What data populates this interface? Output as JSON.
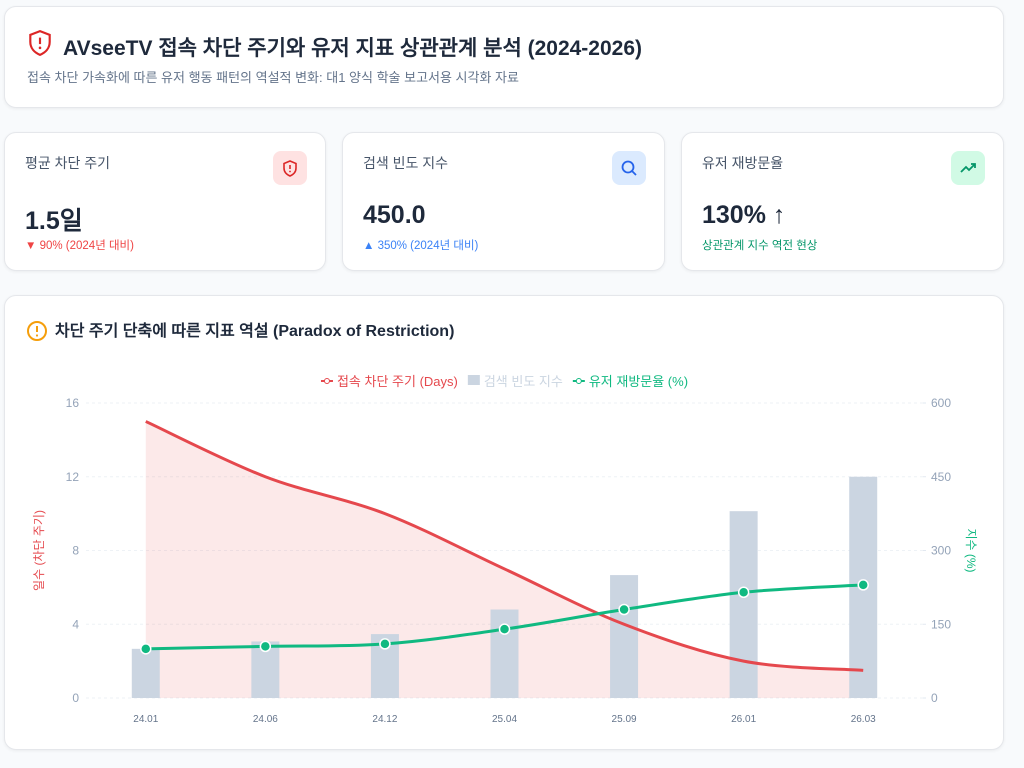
{
  "header": {
    "title": "AVseeTV 접속 차단 주기와 유저 지표 상관관계 분석 (2024-2026)",
    "subtitle": "접속 차단 가속화에 따른 유저 행동 패턴의 역설적 변화: 대1 양식 학술 보고서용 시각화 자료"
  },
  "kpis": [
    {
      "label": "평균 차단 주기",
      "value": "1.5일",
      "note": "90% (2024년 대비)"
    },
    {
      "label": "검색 빈도 지수",
      "value": "450.0",
      "note": "350% (2024년 대비)"
    },
    {
      "label": "유저 재방문율",
      "value": "130% ↑",
      "note": "상관관계 지수 역전 현상"
    }
  ],
  "chart_data": {
    "type": "combo",
    "title": "차단 주기 단축에 따른 지표 역설 (Paradox of Restriction)",
    "categories": [
      "24.01",
      "24.06",
      "24.12",
      "25.04",
      "25.09",
      "26.01",
      "26.03"
    ],
    "series": [
      {
        "name": "접속 차단 주기 (Days)",
        "type": "line",
        "axis": "y",
        "color": "#e5484d",
        "fill": true,
        "markers": false,
        "values": [
          15,
          12,
          10,
          7,
          4,
          2,
          1.5
        ]
      },
      {
        "name": "검색 빈도 지수",
        "type": "bar",
        "axis": "y2",
        "color": "#cbd5e1",
        "values": [
          100,
          115,
          130,
          180,
          250,
          380,
          450
        ]
      },
      {
        "name": "유저 재방문율 (%)",
        "type": "line",
        "axis": "y2",
        "color": "#10b981",
        "fill": false,
        "markers": true,
        "values": [
          100,
          105,
          110,
          140,
          180,
          215,
          230
        ]
      }
    ],
    "ylabel": "일수 (차단 주기)",
    "y2label": "지수 (%)",
    "ylim": [
      0,
      16
    ],
    "yticks": [
      0,
      4,
      8,
      12,
      16
    ],
    "y2lim": [
      0,
      600
    ],
    "y2ticks": [
      0,
      150,
      300,
      450,
      600
    ],
    "grid": true,
    "legend": "top"
  }
}
